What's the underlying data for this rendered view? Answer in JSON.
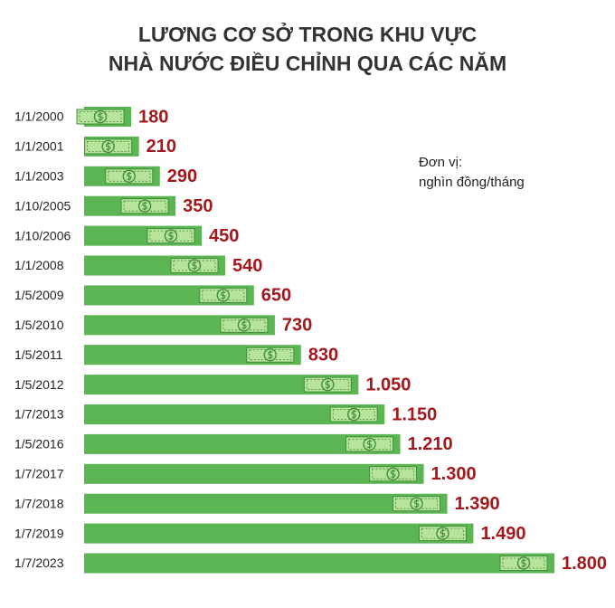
{
  "chart_data": {
    "type": "bar",
    "orientation": "horizontal",
    "title": [
      "LƯƠNG CƠ SỞ TRONG KHU VỰC",
      "NHÀ NƯỚC ĐIỀU CHỈNH QUA CÁC NĂM"
    ],
    "annotations": [
      "Đơn vị:",
      "nghìn đồng/tháng"
    ],
    "categories": [
      "1/1/2000",
      "1/1/2001",
      "1/1/2003",
      "1/10/2005",
      "1/10/2006",
      "1/1/2008",
      "1/5/2009",
      "1/5/2010",
      "1/5/2011",
      "1/5/2012",
      "1/7/2013",
      "1/5/2016",
      "1/7/2017",
      "1/7/2018",
      "1/7/2019",
      "1/7/2023"
    ],
    "values": [
      180,
      210,
      290,
      350,
      450,
      540,
      650,
      730,
      830,
      1050,
      1150,
      1210,
      1300,
      1390,
      1490,
      1800
    ],
    "value_labels": [
      "180",
      "210",
      "290",
      "350",
      "450",
      "540",
      "650",
      "730",
      "830",
      "1.050",
      "1.150",
      "1.210",
      "1.300",
      "1.390",
      "1.490",
      "1.800"
    ],
    "color": "#5bb553",
    "label_color": "#a3181c"
  }
}
